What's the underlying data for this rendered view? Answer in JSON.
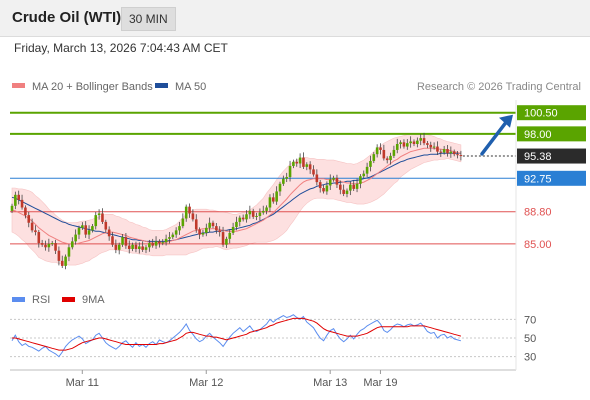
{
  "header": {
    "instrument": "Crude Oil (WTI)",
    "interval": "30 MIN",
    "timestamp": "Friday, March 13, 2026 7:04:43 AM CET"
  },
  "chart_data": {
    "type": "candlestick",
    "price_panel": {
      "legend": [
        {
          "label": "MA 20 + Bollinger Bands",
          "color": "#f08080"
        },
        {
          "label": "MA 50",
          "color": "#1f4e9a"
        }
      ],
      "credit": "Research © 2026 Trading Central",
      "ylim": [
        80.5,
        102.0
      ],
      "current_price": {
        "value": 95.38,
        "label": "95.38"
      },
      "levels": [
        {
          "value": 100.5,
          "label": "100.50",
          "kind": "resistance",
          "color": "#5aa400"
        },
        {
          "value": 98.0,
          "label": "98.00",
          "kind": "resistance",
          "color": "#5aa400"
        },
        {
          "value": 92.75,
          "label": "92.75",
          "kind": "pivot",
          "color": "#2a7fd4"
        },
        {
          "value": 88.8,
          "label": "88.80",
          "kind": "support",
          "color": "#e05252"
        },
        {
          "value": 85.0,
          "label": "85.00",
          "kind": "support",
          "color": "#e05252"
        }
      ],
      "projection": {
        "from": 95.4,
        "to": 100.5,
        "color": "#1f5fae"
      },
      "colors": {
        "up": "#5aa400",
        "down": "#c0392b",
        "wick": "#444444",
        "band_fill": "#fde0e0"
      },
      "ohlc_points": [
        {
          "o": 88.9,
          "c": 89.5
        },
        {
          "o": 89.5,
          "c": 90.8
        },
        {
          "o": 90.8,
          "c": 90.2
        },
        {
          "o": 90.2,
          "c": 89.3
        },
        {
          "o": 89.3,
          "c": 88.4
        },
        {
          "o": 88.4,
          "c": 87.5
        },
        {
          "o": 87.5,
          "c": 86.6
        },
        {
          "o": 86.6,
          "c": 86.4
        },
        {
          "o": 86.4,
          "c": 85.1
        },
        {
          "o": 85.1,
          "c": 84.9
        },
        {
          "o": 84.9,
          "c": 84.6
        },
        {
          "o": 84.6,
          "c": 85.0
        },
        {
          "o": 85.0,
          "c": 85.1
        },
        {
          "o": 85.1,
          "c": 84.2
        },
        {
          "o": 84.2,
          "c": 83.0
        },
        {
          "o": 83.0,
          "c": 82.4
        },
        {
          "o": 82.4,
          "c": 83.5
        },
        {
          "o": 83.5,
          "c": 84.6
        },
        {
          "o": 84.6,
          "c": 85.3
        },
        {
          "o": 85.3,
          "c": 86.1
        },
        {
          "o": 86.1,
          "c": 86.9
        },
        {
          "o": 86.9,
          "c": 87.2
        },
        {
          "o": 87.2,
          "c": 86.1
        },
        {
          "o": 86.1,
          "c": 86.6
        },
        {
          "o": 86.6,
          "c": 87.1
        },
        {
          "o": 87.1,
          "c": 88.4
        },
        {
          "o": 88.4,
          "c": 88.6
        },
        {
          "o": 88.6,
          "c": 87.6
        },
        {
          "o": 87.6,
          "c": 86.7
        },
        {
          "o": 86.7,
          "c": 85.9
        },
        {
          "o": 85.9,
          "c": 84.9
        },
        {
          "o": 84.9,
          "c": 84.3
        },
        {
          "o": 84.3,
          "c": 84.9
        },
        {
          "o": 84.9,
          "c": 85.8
        },
        {
          "o": 85.8,
          "c": 84.8
        },
        {
          "o": 84.8,
          "c": 84.4
        },
        {
          "o": 84.4,
          "c": 84.9
        },
        {
          "o": 84.9,
          "c": 84.4
        },
        {
          "o": 84.4,
          "c": 84.7
        },
        {
          "o": 84.7,
          "c": 84.3
        },
        {
          "o": 84.3,
          "c": 84.6
        },
        {
          "o": 84.6,
          "c": 85.1
        },
        {
          "o": 85.1,
          "c": 84.8
        },
        {
          "o": 84.8,
          "c": 85.3
        },
        {
          "o": 85.3,
          "c": 85.1
        },
        {
          "o": 85.1,
          "c": 85.2
        },
        {
          "o": 85.2,
          "c": 85.6
        },
        {
          "o": 85.6,
          "c": 85.8
        },
        {
          "o": 85.8,
          "c": 86.1
        },
        {
          "o": 86.1,
          "c": 86.6
        },
        {
          "o": 86.6,
          "c": 87.1
        },
        {
          "o": 87.1,
          "c": 88.0
        },
        {
          "o": 88.0,
          "c": 89.4
        },
        {
          "o": 89.4,
          "c": 88.6
        },
        {
          "o": 88.6,
          "c": 87.9
        },
        {
          "o": 87.9,
          "c": 86.7
        },
        {
          "o": 86.7,
          "c": 86.1
        },
        {
          "o": 86.1,
          "c": 86.3
        },
        {
          "o": 86.3,
          "c": 86.9
        },
        {
          "o": 86.9,
          "c": 87.5
        },
        {
          "o": 87.5,
          "c": 87.1
        },
        {
          "o": 87.1,
          "c": 86.6
        },
        {
          "o": 86.6,
          "c": 86.4
        },
        {
          "o": 86.4,
          "c": 84.9
        },
        {
          "o": 84.9,
          "c": 85.6
        },
        {
          "o": 85.6,
          "c": 86.3
        },
        {
          "o": 86.3,
          "c": 87.0
        },
        {
          "o": 87.0,
          "c": 87.6
        },
        {
          "o": 87.6,
          "c": 88.1
        },
        {
          "o": 88.1,
          "c": 87.9
        },
        {
          "o": 87.9,
          "c": 88.5
        },
        {
          "o": 88.5,
          "c": 88.9
        },
        {
          "o": 88.9,
          "c": 88.2
        },
        {
          "o": 88.2,
          "c": 88.3
        },
        {
          "o": 88.3,
          "c": 88.7
        },
        {
          "o": 88.7,
          "c": 88.9
        },
        {
          "o": 88.9,
          "c": 89.3
        },
        {
          "o": 89.3,
          "c": 90.5
        },
        {
          "o": 90.5,
          "c": 90.0
        },
        {
          "o": 90.0,
          "c": 91.2
        },
        {
          "o": 91.2,
          "c": 92.1
        },
        {
          "o": 92.1,
          "c": 92.7
        },
        {
          "o": 92.7,
          "c": 92.9
        },
        {
          "o": 92.9,
          "c": 94.2
        },
        {
          "o": 94.2,
          "c": 94.7
        },
        {
          "o": 94.7,
          "c": 94.5
        },
        {
          "o": 94.5,
          "c": 95.2
        },
        {
          "o": 95.2,
          "c": 94.1
        },
        {
          "o": 94.1,
          "c": 94.4
        },
        {
          "o": 94.4,
          "c": 93.8
        },
        {
          "o": 93.8,
          "c": 93.2
        },
        {
          "o": 93.2,
          "c": 92.3
        },
        {
          "o": 92.3,
          "c": 91.6
        },
        {
          "o": 91.6,
          "c": 91.2
        },
        {
          "o": 91.2,
          "c": 91.9
        },
        {
          "o": 91.9,
          "c": 92.6
        },
        {
          "o": 92.6,
          "c": 92.8
        },
        {
          "o": 92.8,
          "c": 92.0
        },
        {
          "o": 92.0,
          "c": 91.4
        },
        {
          "o": 91.4,
          "c": 90.9
        },
        {
          "o": 90.9,
          "c": 91.3
        },
        {
          "o": 91.3,
          "c": 92.0
        },
        {
          "o": 92.0,
          "c": 91.5
        },
        {
          "o": 91.5,
          "c": 92.1
        },
        {
          "o": 92.1,
          "c": 93.0
        },
        {
          "o": 93.0,
          "c": 93.3
        },
        {
          "o": 93.3,
          "c": 94.1
        },
        {
          "o": 94.1,
          "c": 94.8
        },
        {
          "o": 94.8,
          "c": 95.6
        },
        {
          "o": 95.6,
          "c": 96.4
        },
        {
          "o": 96.4,
          "c": 96.1
        },
        {
          "o": 96.1,
          "c": 95.1
        },
        {
          "o": 95.1,
          "c": 94.9
        },
        {
          "o": 94.9,
          "c": 95.4
        },
        {
          "o": 95.4,
          "c": 96.1
        },
        {
          "o": 96.1,
          "c": 96.8
        },
        {
          "o": 96.8,
          "c": 97.0
        },
        {
          "o": 97.0,
          "c": 96.5
        },
        {
          "o": 96.5,
          "c": 96.9
        },
        {
          "o": 96.9,
          "c": 97.1
        },
        {
          "o": 97.1,
          "c": 96.8
        },
        {
          "o": 96.8,
          "c": 97.2
        },
        {
          "o": 97.2,
          "c": 97.5
        },
        {
          "o": 97.5,
          "c": 96.9
        },
        {
          "o": 96.9,
          "c": 96.7
        },
        {
          "o": 96.7,
          "c": 96.4
        },
        {
          "o": 96.4,
          "c": 96.5
        },
        {
          "o": 96.5,
          "c": 95.9
        },
        {
          "o": 95.9,
          "c": 95.8
        },
        {
          "o": 95.8,
          "c": 96.2
        },
        {
          "o": 96.2,
          "c": 95.7
        },
        {
          "o": 95.7,
          "c": 95.9
        },
        {
          "o": 95.9,
          "c": 95.6
        },
        {
          "o": 95.6,
          "c": 95.5
        },
        {
          "o": 95.5,
          "c": 95.4
        }
      ],
      "ma20": [
        89.0,
        88.9,
        88.7,
        88.5,
        88.3,
        88.0,
        87.7,
        87.3,
        86.9,
        86.6,
        86.3,
        86.0,
        85.8,
        85.6,
        85.4,
        85.2,
        85.1,
        85.0,
        85.0,
        85.0,
        85.1,
        85.2,
        85.3,
        85.4,
        85.6,
        85.8,
        86.0,
        86.2,
        86.3,
        86.4,
        86.4,
        86.3,
        86.2,
        86.1,
        86.0,
        85.8,
        85.7,
        85.6,
        85.5,
        85.4,
        85.3,
        85.2,
        85.1,
        85.1,
        85.1,
        85.1,
        85.2,
        85.3,
        85.4,
        85.5,
        85.7,
        85.9,
        86.1,
        86.3,
        86.5,
        86.6,
        86.7,
        86.8,
        86.8,
        86.8,
        86.8,
        86.8,
        86.7,
        86.6,
        86.5,
        86.5,
        86.5,
        86.5,
        86.6,
        86.7,
        86.8,
        87.0,
        87.2,
        87.4,
        87.6,
        87.8,
        88.1,
        88.4,
        88.7,
        89.1,
        89.5,
        89.9,
        90.3,
        90.8,
        91.2,
        91.6,
        92.0,
        92.3,
        92.5,
        92.6,
        92.7,
        92.7,
        92.7,
        92.7,
        92.6,
        92.6,
        92.6,
        92.5,
        92.4,
        92.3,
        92.2,
        92.2,
        92.1,
        92.1,
        92.2,
        92.3,
        92.5,
        92.7,
        93.0,
        93.3,
        93.6,
        93.9,
        94.2,
        94.5,
        94.8,
        95.0,
        95.3,
        95.5,
        95.7,
        95.9,
        96.0,
        96.1,
        96.2,
        96.3,
        96.3,
        96.3,
        96.3,
        96.2,
        96.2,
        96.1,
        96.1,
        96.0,
        95.9,
        95.8,
        95.7
      ],
      "ma50": [
        90.5,
        90.4,
        90.2,
        90.0,
        89.8,
        89.6,
        89.4,
        89.2,
        89.0,
        88.8,
        88.6,
        88.4,
        88.2,
        88.0,
        87.8,
        87.6,
        87.5,
        87.3,
        87.2,
        87.1,
        87.0,
        86.9,
        86.8,
        86.7,
        86.6,
        86.5,
        86.5,
        86.4,
        86.3,
        86.2,
        86.1,
        86.0,
        85.9,
        85.8,
        85.7,
        85.6,
        85.5,
        85.5,
        85.4,
        85.4,
        85.3,
        85.3,
        85.3,
        85.3,
        85.3,
        85.3,
        85.3,
        85.4,
        85.4,
        85.5,
        85.6,
        85.7,
        85.8,
        85.9,
        86.0,
        86.1,
        86.2,
        86.3,
        86.3,
        86.4,
        86.4,
        86.5,
        86.5,
        86.6,
        86.6,
        86.7,
        86.7,
        86.8,
        86.9,
        87.0,
        87.1,
        87.2,
        87.4,
        87.5,
        87.7,
        87.9,
        88.1,
        88.3,
        88.5,
        88.8,
        89.1,
        89.4,
        89.7,
        90.0,
        90.3,
        90.6,
        90.9,
        91.1,
        91.3,
        91.5,
        91.6,
        91.8,
        91.9,
        92.0,
        92.1,
        92.1,
        92.2,
        92.2,
        92.3,
        92.3,
        92.4,
        92.4,
        92.5,
        92.5,
        92.6,
        92.7,
        92.8,
        92.9,
        93.1,
        93.3,
        93.5,
        93.7,
        93.9,
        94.1,
        94.3,
        94.5,
        94.7,
        94.8,
        95.0,
        95.1,
        95.2,
        95.3,
        95.4,
        95.5,
        95.5,
        95.6,
        95.6,
        95.6,
        95.7,
        95.7,
        95.7,
        95.7,
        95.7,
        95.7,
        95.7
      ],
      "bb_width": [
        2.6,
        2.7,
        2.8,
        3.0,
        3.1,
        3.3,
        3.4,
        3.4,
        3.5,
        3.4,
        3.3,
        3.1,
        3.0,
        2.8,
        2.7,
        2.6,
        2.5,
        2.5,
        2.5,
        2.5,
        2.5,
        2.5,
        2.4,
        2.4,
        2.3,
        2.3,
        2.2,
        2.2,
        2.2,
        2.1,
        2.1,
        2.0,
        2.0,
        1.9,
        1.9,
        1.8,
        1.8,
        1.7,
        1.7,
        1.6,
        1.6,
        1.5,
        1.5,
        1.5,
        1.5,
        1.5,
        1.5,
        1.6,
        1.7,
        1.8,
        2.0,
        2.2,
        2.4,
        2.4,
        2.5,
        2.5,
        2.4,
        2.3,
        2.3,
        2.2,
        2.2,
        2.1,
        2.1,
        2.2,
        2.2,
        2.1,
        2.0,
        2.0,
        2.0,
        2.0,
        2.0,
        2.0,
        2.1,
        2.2,
        2.4,
        2.6,
        2.9,
        3.1,
        3.3,
        3.5,
        3.6,
        3.7,
        3.7,
        3.6,
        3.5,
        3.3,
        3.1,
        2.9,
        2.7,
        2.5,
        2.4,
        2.3,
        2.3,
        2.3,
        2.3,
        2.3,
        2.3,
        2.3,
        2.3,
        2.3,
        2.3,
        2.3,
        2.3,
        2.4,
        2.5,
        2.6,
        2.7,
        2.8,
        2.9,
        3.0,
        3.0,
        3.0,
        2.9,
        2.8,
        2.7,
        2.6,
        2.4,
        2.3,
        2.2,
        2.1,
        2.0,
        1.9,
        1.8,
        1.7,
        1.6,
        1.5,
        1.4,
        1.3,
        1.2,
        1.1,
        1.0,
        1.0,
        1.0,
        1.0,
        1.0
      ]
    },
    "rsi_panel": {
      "legend": [
        {
          "label": "RSI",
          "color": "#5b8def"
        },
        {
          "label": "9MA",
          "color": "#e00000"
        }
      ],
      "ylim": [
        20,
        80
      ],
      "yticks": [
        30,
        50,
        70
      ],
      "rsi": [
        47,
        53,
        46,
        42,
        44,
        41,
        40,
        38,
        36,
        39,
        41,
        37,
        35,
        33,
        30,
        35,
        41,
        45,
        48,
        50,
        52,
        49,
        44,
        46,
        48,
        53,
        55,
        50,
        45,
        42,
        40,
        38,
        41,
        45,
        47,
        43,
        40,
        45,
        41,
        43,
        40,
        44,
        46,
        43,
        48,
        46,
        45,
        47,
        50,
        53,
        56,
        60,
        65,
        58,
        54,
        49,
        46,
        48,
        52,
        55,
        51,
        48,
        45,
        41,
        46,
        51,
        55,
        58,
        61,
        57,
        60,
        63,
        58,
        57,
        59,
        62,
        65,
        70,
        67,
        70,
        72,
        74,
        72,
        73,
        75,
        72,
        70,
        73,
        67,
        64,
        61,
        55,
        50,
        47,
        53,
        58,
        60,
        54,
        49,
        46,
        49,
        53,
        49,
        54,
        58,
        60,
        63,
        65,
        67,
        69,
        65,
        58,
        56,
        59,
        63,
        65,
        64,
        62,
        64,
        65,
        63,
        64,
        66,
        62,
        57,
        55,
        56,
        50,
        53,
        54,
        50,
        52,
        49,
        48,
        47
      ],
      "rsi_ma9": [
        50,
        50,
        49,
        48,
        47,
        46,
        45,
        44,
        43,
        42,
        41,
        40,
        39,
        38,
        37,
        37,
        37,
        38,
        39,
        41,
        43,
        45,
        46,
        47,
        48,
        49,
        50,
        50,
        49,
        48,
        47,
        46,
        45,
        44,
        43,
        43,
        43,
        43,
        43,
        43,
        43,
        43,
        43,
        43,
        44,
        44,
        45,
        46,
        47,
        48,
        50,
        52,
        55,
        56,
        56,
        55,
        54,
        53,
        52,
        52,
        51,
        51,
        50,
        49,
        48,
        49,
        50,
        51,
        52,
        53,
        54,
        56,
        57,
        58,
        59,
        60,
        61,
        63,
        64,
        66,
        67,
        68,
        69,
        70,
        71,
        71,
        71,
        71,
        70,
        69,
        68,
        66,
        63,
        60,
        58,
        57,
        56,
        55,
        54,
        53,
        52,
        52,
        52,
        52,
        53,
        54,
        55,
        57,
        59,
        61,
        62,
        62,
        62,
        62,
        62,
        62,
        62,
        62,
        62,
        63,
        63,
        63,
        63,
        63,
        62,
        61,
        60,
        59,
        58,
        57,
        56,
        55,
        54,
        53,
        52
      ]
    },
    "x_labels": [
      {
        "label": "Mar 11",
        "index": 18
      },
      {
        "label": "Mar 12",
        "index": 55
      },
      {
        "label": "Mar 13",
        "index": 92
      },
      {
        "label": "Mar 19",
        "index": 107
      }
    ]
  }
}
